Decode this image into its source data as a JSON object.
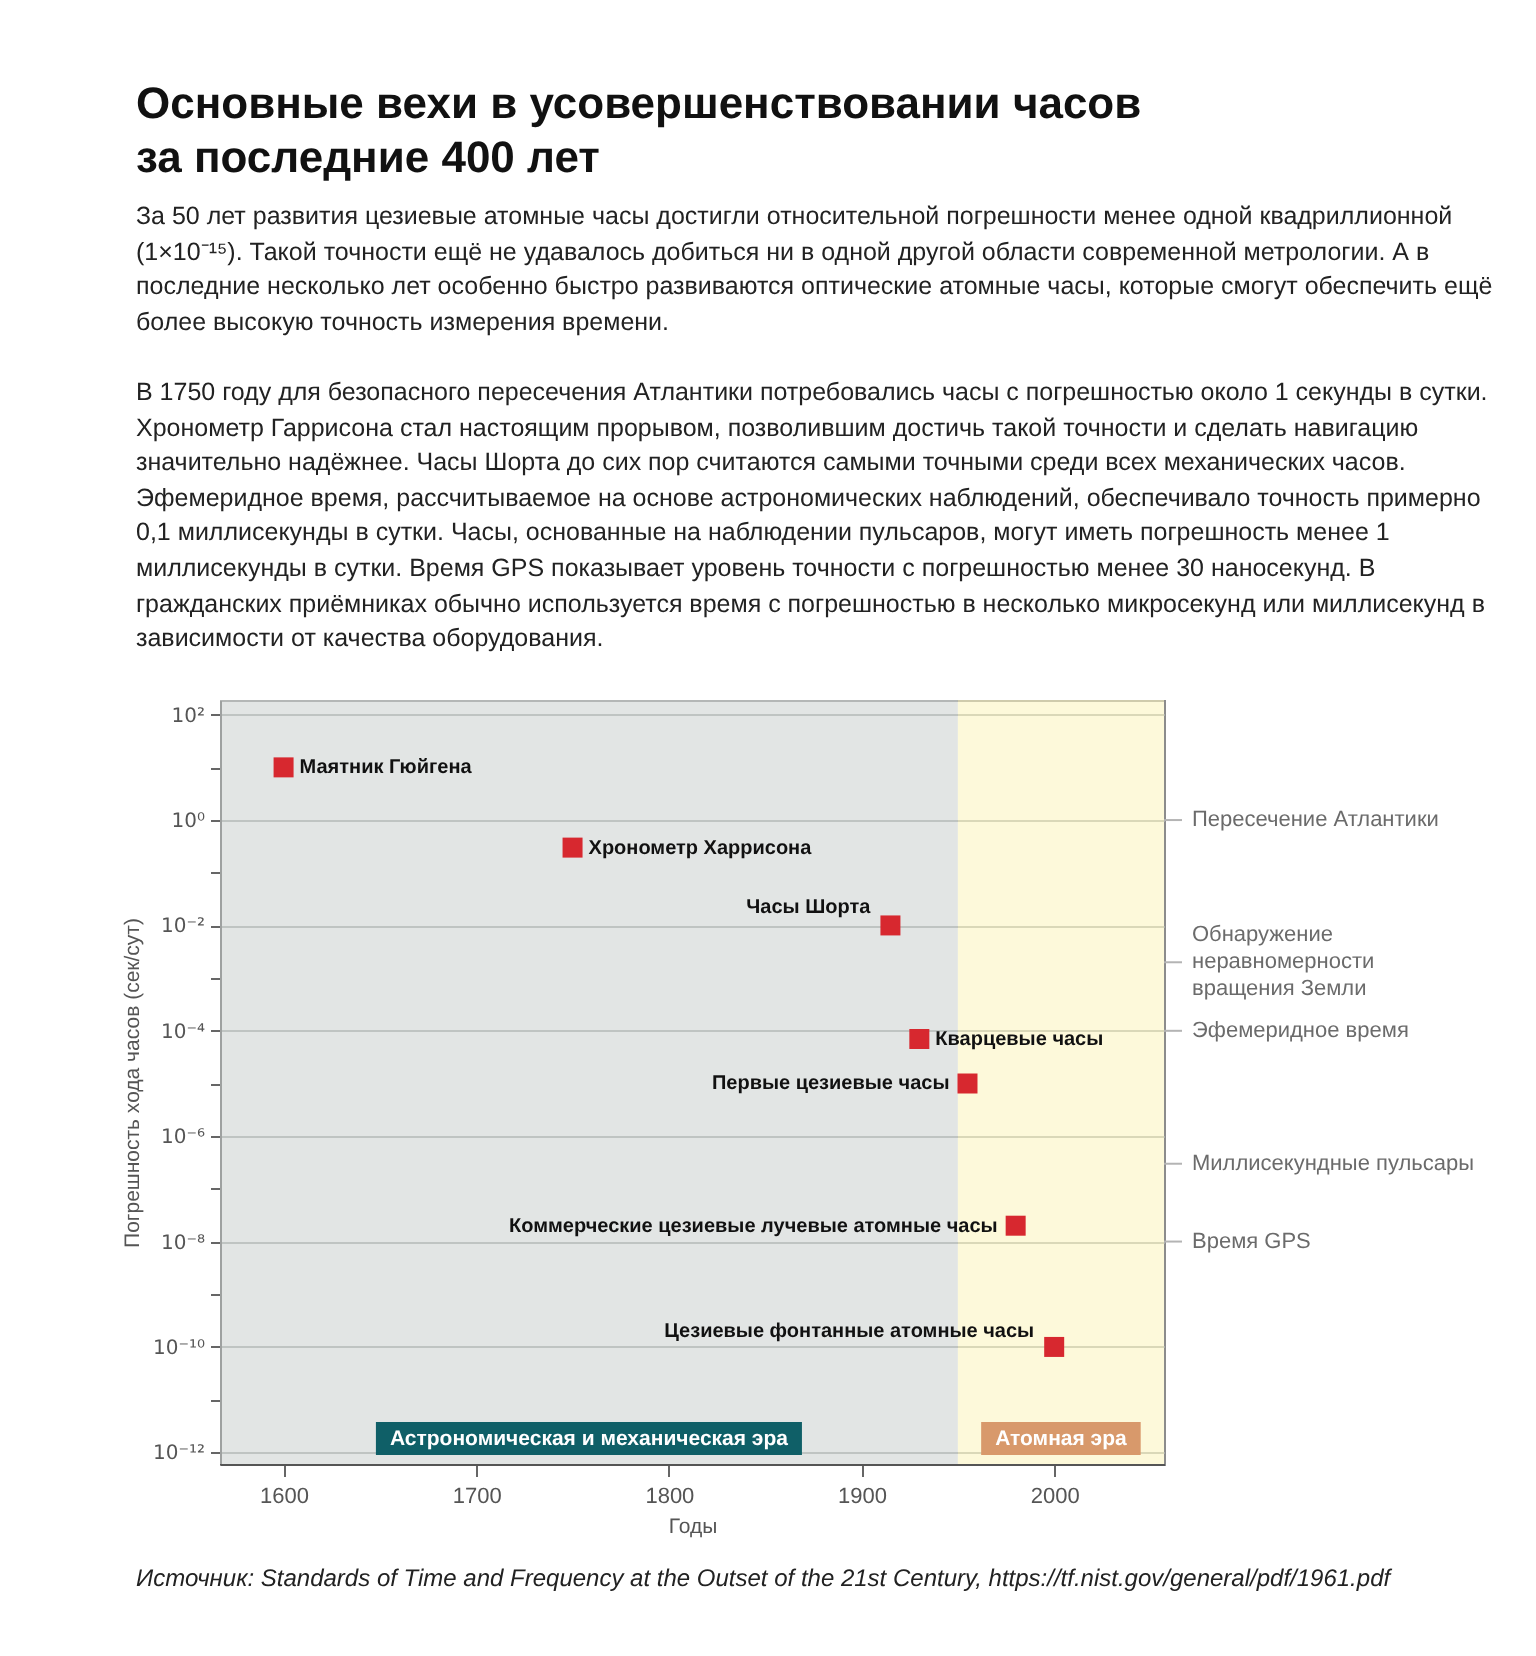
{
  "chart_data": {
    "type": "scatter",
    "title": "Основные вехи в усовершенствовании часов за последние 400 лет",
    "subtitle": "За 50 лет развития цезиевые атомные часы достигли относительной погрешности менее одной квадриллионной (1×10⁻¹⁵). Такой точности ещё не удавалось добиться ни в одной другой области современной метрологии. А в последние несколько лет особенно быстро развиваются оптические атомные часы, которые смогут обеспечить ещё более высокую точность измерения времени.\n\nВ 1750 году для безопасного пересечения Атлантики потребовались часы с погрешностью около 1 секунды в сутки. Хронометр Гаррисона стал настоящим прорывом, позволившим достичь такой точности и сделать навигацию значительно надёжнее. Часы Шорта до сих пор считаются самыми точными среди всех механических часов. Эфемеридное время, рассчитываемое на основе астрономических наблюдений, обеспечивало точность примерно 0,1 миллисекунды в сутки. Часы, основанные на наблюдении пульсаров, могут иметь погрешность менее 1 миллисекунды в сутки. Время GPS показывает уровень точности с погрешностью менее 30 наносекунд. В гражданских приёмниках обычно используется время с погрешностью в несколько микросекунд или миллисекунд в зависимости от качества оборудования.",
    "xlabel": "Годы",
    "ylabel": "Погрешность хода часов (сек/сут)",
    "annotations": [
      "Источник: Standards of Time and Frequency at the Outset of the 21st Century, https://tf.nist.gov/general/pdf/1961.pdf"
    ],
    "series": [
      {
        "name": "Маятник Гюйгена",
        "color": "#d7282f",
        "x": [
          1600
        ],
        "values": [
          10
        ]
      },
      {
        "name": "Хронометр Харрисона",
        "color": "#d7282f",
        "x": [
          1750
        ],
        "values": [
          0.3
        ]
      },
      {
        "name": "Часы Шорта",
        "color": "#d7282f",
        "x": [
          1915
        ],
        "values": [
          0.01
        ]
      },
      {
        "name": "Кварцевые часы",
        "color": "#d7282f",
        "x": [
          1930
        ],
        "values": [
          7e-05
        ]
      },
      {
        "name": "Первые цезиевые часы",
        "color": "#d7282f",
        "x": [
          1955
        ],
        "values": [
          1e-05
        ]
      },
      {
        "name": "Коммерческие цезиевые лучевые атомные часы",
        "color": "#d7282f",
        "x": [
          1980
        ],
        "values": [
          2e-08
        ]
      },
      {
        "name": "Цезиевые фонтанные атомные часы",
        "color": "#d7282f",
        "x": [
          2000
        ],
        "values": [
          1e-10
        ]
      }
    ],
    "xlim": [
      1567,
      2057
    ],
    "xticks": [
      1600,
      1700,
      1800,
      1900,
      2000
    ],
    "ylim": [
      6e-13,
      190
    ],
    "yticks": [
      {
        "value": 100,
        "label": "10²"
      },
      {
        "value": 10,
        "label": null
      },
      {
        "value": 1,
        "label": "10⁰"
      },
      {
        "value": 0.1,
        "label": null
      },
      {
        "value": 0.01,
        "label": "10⁻²"
      },
      {
        "value": 0.001,
        "label": null
      },
      {
        "value": 0.0001,
        "label": "10⁻⁴"
      },
      {
        "value": 1e-05,
        "label": null
      },
      {
        "value": 1e-06,
        "label": "10⁻⁶"
      },
      {
        "value": 1e-07,
        "label": null
      },
      {
        "value": 1e-08,
        "label": "10⁻⁸"
      },
      {
        "value": 1e-09,
        "label": null
      },
      {
        "value": 1e-10,
        "label": "10⁻¹⁰"
      },
      {
        "value": 1e-11,
        "label": null
      },
      {
        "value": 1e-12,
        "label": "10⁻¹²"
      }
    ],
    "log": "y",
    "grid": "y",
    "marker": "square",
    "bands": [
      {
        "axis": "x",
        "from": 1567,
        "to": 1950,
        "label": "Астрономическая и механическая эра",
        "color": "#e2e5e4"
      },
      {
        "axis": "x",
        "from": 1950,
        "to": 2057,
        "label": "Атомная эра",
        "color": "#fdf9da"
      }
    ],
    "ref_lines": [
      {
        "axis": "y",
        "value": 1,
        "label": "Пересечение Атлантики"
      },
      {
        "axis": "y",
        "value": 0.002,
        "label": "Обнаружение неравномерности вращения Земли"
      },
      {
        "axis": "y",
        "value": 0.0001,
        "label": "Эфемеридное время"
      },
      {
        "axis": "y",
        "value": 3e-07,
        "label": "Миллисекундные пульсары"
      },
      {
        "axis": "y",
        "value": 1e-08,
        "label": "Время GPS"
      }
    ]
  }
}
